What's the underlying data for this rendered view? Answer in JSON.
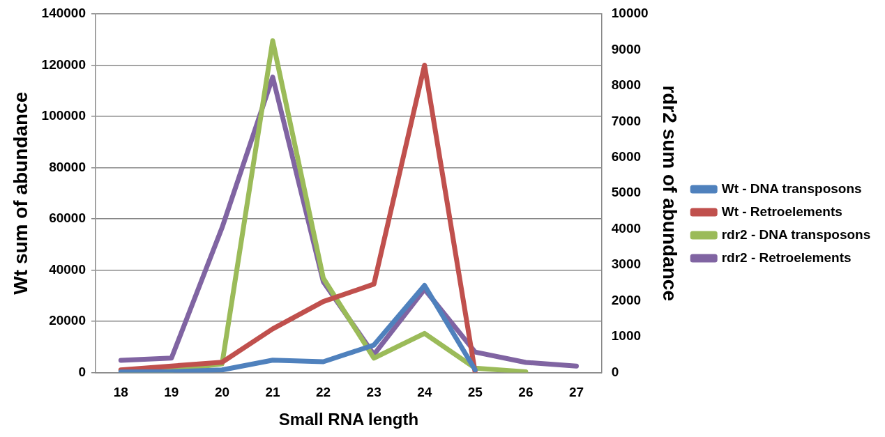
{
  "chart_data": {
    "type": "line",
    "xlabel": "Small RNA length",
    "ylabel": "Wt sum of abundance",
    "y2label": "rdr2 sum of abundance",
    "categories": [
      "18",
      "19",
      "20",
      "21",
      "22",
      "23",
      "24",
      "25",
      "26",
      "27"
    ],
    "series": [
      {
        "name": "Wt - DNA transposons",
        "color": "#4f81bd",
        "values": [
          200,
          300,
          1000,
          4800,
          4200,
          10700,
          34000,
          1000,
          null,
          null
        ]
      },
      {
        "name": "Wt - Retroelements",
        "color": "#c0504d",
        "values": [
          1000,
          2500,
          4000,
          17000,
          27700,
          34500,
          120000,
          0,
          null,
          null
        ]
      },
      {
        "name": "rdr2 - DNA transposons",
        "color": "#9bbb59",
        "axis": "y2",
        "values": [
          60,
          60,
          240,
          9250,
          2630,
          400,
          1090,
          120,
          20,
          null
        ]
      },
      {
        "name": "rdr2 - Retroelements",
        "color": "#8064a2",
        "axis": "y2",
        "values": [
          340,
          400,
          4040,
          8240,
          2530,
          500,
          2320,
          570,
          280,
          180
        ]
      }
    ],
    "ylim": [
      0,
      140000
    ],
    "yticks": [
      0,
      20000,
      40000,
      60000,
      80000,
      100000,
      120000,
      140000
    ],
    "y2lim": [
      0,
      10000
    ],
    "y2ticks": [
      0,
      1000,
      2000,
      3000,
      4000,
      5000,
      6000,
      7000,
      8000,
      9000,
      10000
    ],
    "grid": "y",
    "legend": "right",
    "marker": "none",
    "line_style": "solid"
  }
}
